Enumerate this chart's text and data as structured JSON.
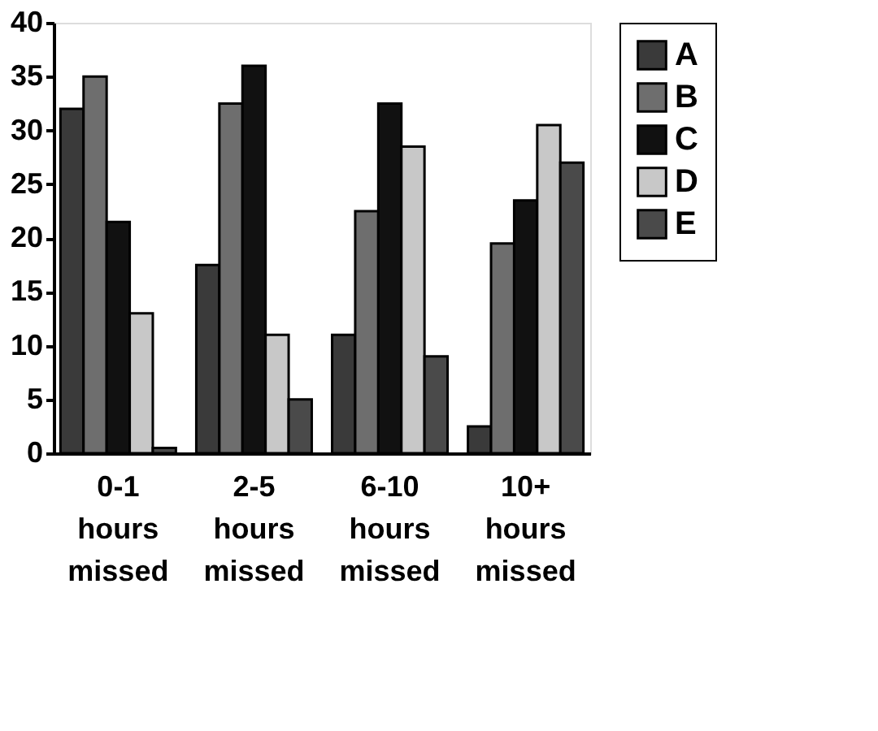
{
  "chart_data": {
    "type": "bar",
    "categories": [
      "0-1 hours missed",
      "2-5 hours missed",
      "6-10 hours missed",
      "10+ hours missed"
    ],
    "series": [
      {
        "name": "A",
        "color": "#3a3a3a",
        "values": [
          32,
          17.5,
          11,
          2.5
        ]
      },
      {
        "name": "B",
        "color": "#6e6e6e",
        "values": [
          35,
          32.5,
          22.5,
          19.5
        ]
      },
      {
        "name": "C",
        "color": "#111111",
        "values": [
          21.5,
          36,
          32.5,
          23.5
        ]
      },
      {
        "name": "D",
        "color": "#c8c8c8",
        "values": [
          13,
          11,
          28.5,
          30.5
        ]
      },
      {
        "name": "E",
        "color": "#4a4a4a",
        "values": [
          0.5,
          5,
          9,
          27
        ]
      }
    ],
    "ylim": [
      0,
      40
    ],
    "yticks": [
      0,
      5,
      10,
      15,
      20,
      25,
      30,
      35,
      40
    ],
    "grid": false,
    "legend": "top right"
  }
}
